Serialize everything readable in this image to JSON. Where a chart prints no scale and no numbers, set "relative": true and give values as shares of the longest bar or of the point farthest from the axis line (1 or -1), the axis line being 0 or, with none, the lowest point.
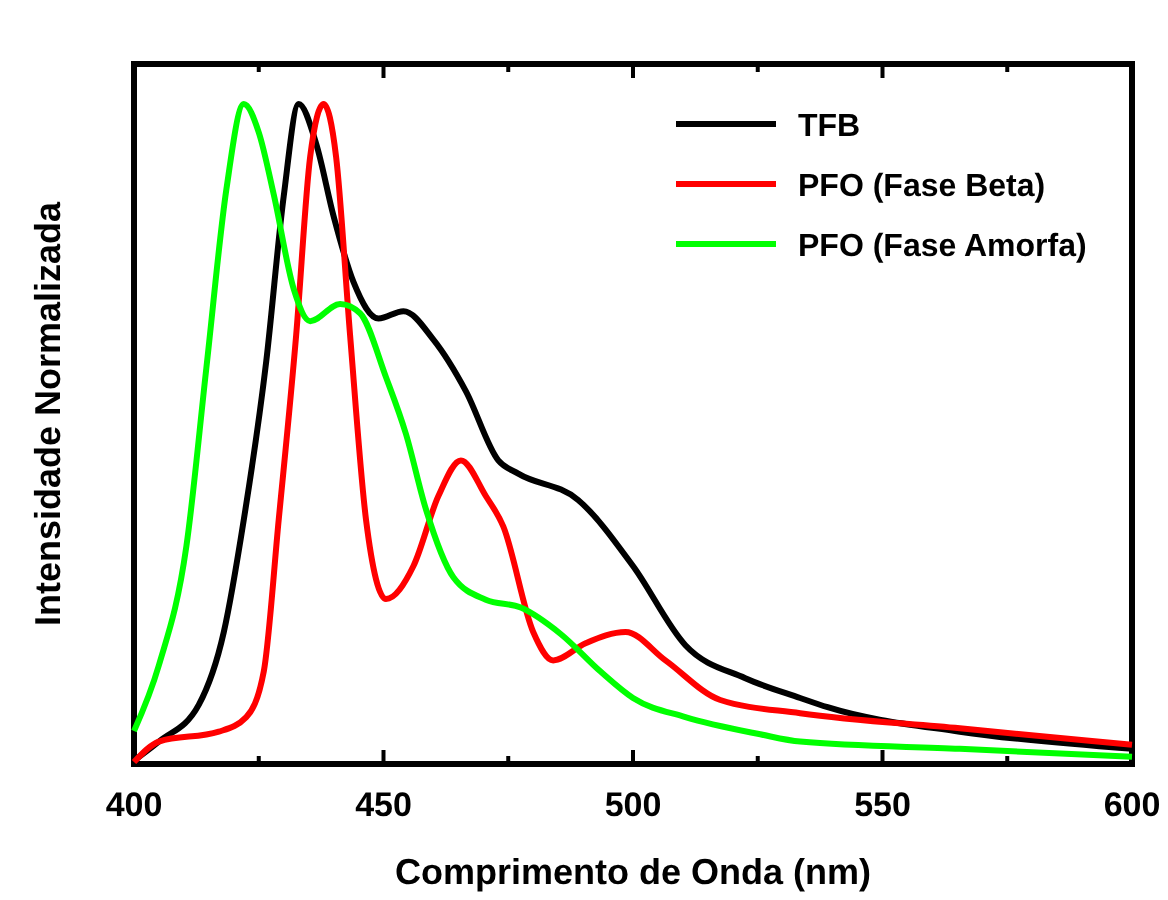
{
  "chart_data": {
    "type": "line",
    "relative": true,
    "xlabel": "Comprimento de Onda (nm)",
    "ylabel": "Intensidade Normalizada",
    "xlim": [
      400,
      600
    ],
    "xticks": [
      400,
      {
        "value": 425,
        "label": null
      },
      450,
      {
        "value": 475,
        "label": null
      },
      500,
      {
        "value": 525,
        "label": null
      },
      550,
      {
        "value": 575,
        "label": null
      },
      600
    ],
    "legend": "top right",
    "grid": false,
    "line_style": "solid",
    "series": [
      {
        "name": "TFB",
        "color": "#000000",
        "x": [
          400,
          405,
          413,
          418,
          422,
          426.5,
          430,
          433,
          436.5,
          440,
          444,
          449,
          454,
          460,
          466.5,
          473,
          477,
          489,
          500,
          510.5,
          522.5,
          533.5,
          539,
          565.5,
          600
        ],
        "values": [
          0.005,
          0.034,
          0.09,
          0.2,
          0.37,
          0.61,
          0.86,
          1.0,
          0.94,
          0.83,
          0.73,
          0.675,
          0.686,
          0.643,
          0.565,
          0.46,
          0.44,
          0.4,
          0.3,
          0.18,
          0.13,
          0.1,
          0.086,
          0.049,
          0.023
        ]
      },
      {
        "name": "PFO (Fase Beta)",
        "color": "#ff0000",
        "x": [
          400,
          405,
          417,
          422.5,
          426,
          429,
          432.5,
          435.3,
          438,
          440.5,
          443.3,
          446.5,
          450.5,
          456,
          461,
          465.5,
          470.5,
          474,
          480,
          484,
          490.5,
          498.5,
          506.5,
          517.5,
          533.5,
          565.5,
          600
        ],
        "values": [
          0.003,
          0.034,
          0.049,
          0.071,
          0.14,
          0.37,
          0.65,
          0.92,
          1.0,
          0.92,
          0.65,
          0.37,
          0.25,
          0.3,
          0.406,
          0.46,
          0.406,
          0.36,
          0.2,
          0.157,
          0.183,
          0.2,
          0.157,
          0.097,
          0.077,
          0.054,
          0.029
        ]
      },
      {
        "name": "PFO (Fase Amorfa)",
        "color": "#00ff00",
        "x": [
          400,
          405,
          410.5,
          414.5,
          418.5,
          422,
          425,
          428,
          432,
          435.3,
          441.3,
          445.3,
          450.5,
          454.5,
          458.5,
          464,
          470.5,
          477.5,
          485.5,
          493.5,
          500,
          510.5,
          525.5,
          533.5,
          565.5,
          600
        ],
        "values": [
          0.05,
          0.15,
          0.33,
          0.6,
          0.87,
          1.0,
          0.957,
          0.863,
          0.72,
          0.671,
          0.697,
          0.683,
          0.586,
          0.5,
          0.386,
          0.283,
          0.249,
          0.237,
          0.197,
          0.14,
          0.1,
          0.071,
          0.045,
          0.034,
          0.023,
          0.011
        ]
      }
    ]
  }
}
